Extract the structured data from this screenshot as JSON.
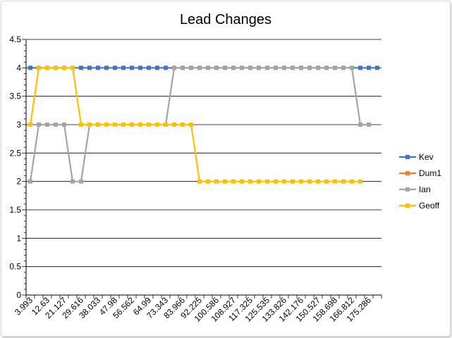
{
  "chart_data": {
    "type": "line",
    "title": "Lead Changes",
    "ylim": [
      0,
      4.5
    ],
    "y_ticks": [
      "0",
      "0.5",
      "1",
      "1.5",
      "2",
      "2.5",
      "3",
      "3.5",
      "4",
      "4.5"
    ],
    "x_tick_labels": [
      "3.993",
      "12.63",
      "21.127",
      "29.616",
      "38.033",
      "47.98",
      "56.562",
      "64.99",
      "73.343",
      "83.966",
      "92.225",
      "100.586",
      "108.927",
      "117.325",
      "125.535",
      "133.826",
      "142.176",
      "150.527",
      "158.698",
      "166.812",
      "175.286"
    ],
    "num_points": 42,
    "grid": "horizontal",
    "legend_position": "right",
    "series": [
      {
        "name": "Kev",
        "color": "#4472C4",
        "values": [
          4,
          4,
          4,
          4,
          4,
          4,
          4,
          4,
          4,
          4,
          4,
          4,
          4,
          4,
          4,
          4,
          4,
          4,
          4,
          4,
          4,
          4,
          4,
          4,
          4,
          4,
          4,
          4,
          4,
          4,
          4,
          4,
          4,
          4,
          4,
          4,
          4,
          4,
          4,
          4,
          4,
          4
        ]
      },
      {
        "name": "Dum1",
        "color": "#ED7D31",
        "values": []
      },
      {
        "name": "Ian",
        "color": "#A5A5A5",
        "values": [
          2,
          3,
          3,
          3,
          3,
          2,
          2,
          3,
          3,
          3,
          3,
          3,
          3,
          3,
          3,
          3,
          3,
          4,
          4,
          4,
          4,
          4,
          4,
          4,
          4,
          4,
          4,
          4,
          4,
          4,
          4,
          4,
          4,
          4,
          4,
          4,
          4,
          4,
          4,
          3,
          3,
          null
        ]
      },
      {
        "name": "Geoff",
        "color": "#FFC000",
        "values": [
          3,
          4,
          4,
          4,
          4,
          4,
          3,
          3,
          3,
          3,
          3,
          3,
          3,
          3,
          3,
          3,
          3,
          3,
          3,
          3,
          2,
          2,
          2,
          2,
          2,
          2,
          2,
          2,
          2,
          2,
          2,
          2,
          2,
          2,
          2,
          2,
          2,
          2,
          2,
          2,
          null,
          null
        ]
      }
    ]
  }
}
